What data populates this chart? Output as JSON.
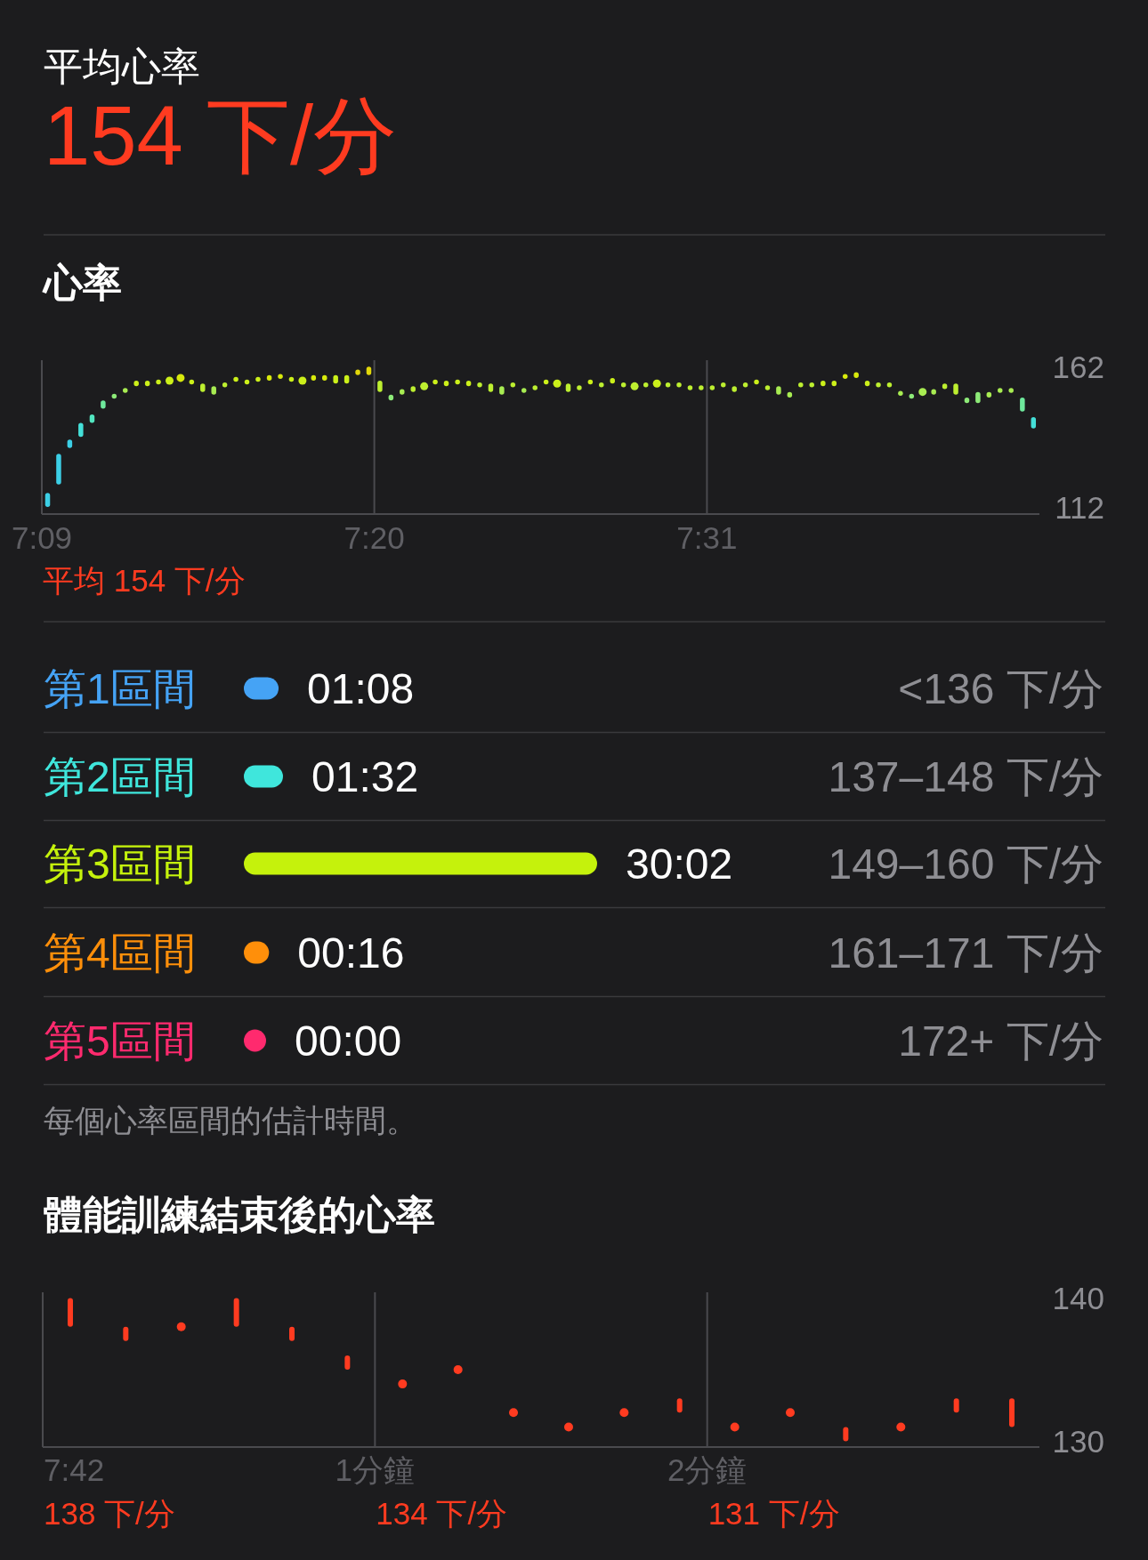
{
  "chart_data": [
    {
      "type": "other",
      "title": "平均心率",
      "subtitle": "154 下/分"
    },
    {
      "type": "bar",
      "title": "心率",
      "series": [
        {
          "type": "bar",
          "x": [
            7.1532,
            7.1593,
            7.1654,
            7.1715,
            7.1777,
            7.1838,
            7.1899,
            7.196,
            7.2021,
            7.2082,
            7.2143,
            7.2326,
            7.2387,
            7.2448,
            7.2509,
            7.257,
            7.2631,
            7.2692,
            7.2754,
            7.2815,
            7.2876,
            7.2998,
            7.3059,
            7.312,
            7.3181,
            7.3242,
            7.3303,
            7.3364,
            7.3425,
            7.3486,
            7.3547,
            7.3669,
            7.373,
            7.3792,
            7.3853,
            7.3914,
            7.3975,
            7.4036,
            7.4097,
            7.4158,
            7.4219,
            7.428,
            7.4402,
            7.4463,
            7.4524,
            7.4585,
            7.4646,
            7.4707,
            7.483,
            7.4952,
            7.5013,
            7.5074,
            7.5135,
            7.5196,
            7.5257,
            7.5318,
            7.5379,
            7.544,
            7.5501,
            7.5562,
            7.5623,
            7.5684,
            7.5745,
            7.5807,
            7.5868,
            7.5929,
            7.599,
            7.6051,
            7.6112,
            7.6173,
            7.6234,
            7.6295,
            7.6417,
            7.6478,
            7.6539,
            7.66,
            7.6661,
            7.6722,
            7.6783,
            7.6844,
            7.6906,
            7.6967
          ],
          "base": [
            112,
            120,
            133,
            137,
            142,
            147,
            151,
            153,
            155,
            155,
            156,
            156,
            153,
            152,
            155,
            157,
            156,
            157,
            157,
            158,
            157,
            157,
            157,
            156,
            156,
            159,
            159,
            153,
            150,
            152,
            153,
            156,
            155,
            156,
            155,
            155,
            153,
            152,
            155,
            153,
            154,
            156,
            153,
            154,
            156,
            155,
            156,
            155,
            155,
            155,
            155,
            154,
            154,
            154,
            155,
            153,
            155,
            156,
            154,
            152,
            151,
            155,
            155,
            155,
            155,
            158,
            158,
            155,
            155,
            155,
            152,
            151,
            152,
            154,
            152,
            149,
            149,
            151,
            153,
            153,
            146,
            140
          ],
          "values": [
            5,
            11,
            3,
            5,
            3,
            3,
            1,
            1,
            2,
            2,
            1,
            1,
            3,
            3,
            1,
            1,
            1,
            1,
            2,
            1,
            1,
            2,
            2,
            3,
            3,
            2,
            3,
            4,
            2,
            2,
            2,
            1,
            2,
            1,
            2,
            1,
            3,
            3,
            1,
            1,
            1,
            1,
            3,
            1,
            1,
            1,
            2,
            1,
            1,
            1,
            1,
            1,
            1,
            1,
            1,
            2,
            1,
            1,
            1,
            3,
            2,
            1,
            1,
            2,
            2,
            1,
            2,
            2,
            1,
            1,
            1,
            1,
            2,
            2,
            4,
            2,
            4,
            2,
            1,
            1,
            5,
            4
          ],
          "colors": [
            "#3ccfe6",
            "#3ccfe6",
            "#3ccfe6",
            "#44dfd8",
            "#52e6c0",
            "#6ee89c",
            "#8dea78",
            "#a8ec52",
            "#ccf01a",
            "#ccf01a",
            "#ccf01a",
            "#ccf01a",
            "#bdef30",
            "#a8ec52",
            "#bdef30",
            "#ccf01a",
            "#ccf01a",
            "#ccf01a",
            "#d8ea0c",
            "#d8ea0c",
            "#ccf01a",
            "#d8ea0c",
            "#d8ea0c",
            "#ccf01a",
            "#ccf01a",
            "#e2d70a",
            "#e2d70a",
            "#bdef30",
            "#8dea78",
            "#a8ec52",
            "#bdef30",
            "#ccf01a",
            "#ccf01a",
            "#ccf01a",
            "#ccf01a",
            "#bdef30",
            "#bdef30",
            "#a8ec52",
            "#bdef30",
            "#a8ec52",
            "#bdef30",
            "#ccf01a",
            "#bdef30",
            "#bdef30",
            "#ccf01a",
            "#bdef30",
            "#ccf01a",
            "#bdef30",
            "#bdef30",
            "#bdef30",
            "#bdef30",
            "#bdef30",
            "#bdef30",
            "#bdef30",
            "#bdef30",
            "#bdef30",
            "#bdef30",
            "#ccf01a",
            "#bdef30",
            "#a8ec52",
            "#a8ec52",
            "#bdef30",
            "#bdef30",
            "#ccf01a",
            "#ccf01a",
            "#d8ea0c",
            "#d8ea0c",
            "#ccf01a",
            "#bdef30",
            "#bdef30",
            "#a8ec52",
            "#8dea78",
            "#a8ec52",
            "#bdef30",
            "#bdef30",
            "#8dea78",
            "#8dea78",
            "#a8ec52",
            "#a8ec52",
            "#a8ec52",
            "#6ee89c",
            "#44dfd8"
          ]
        },
        {
          "type": "scatter",
          "marker": "circle",
          "x": [
            7.2204,
            7.2265,
            7.2937,
            7.3608,
            7.4341,
            7.4768,
            7.4891,
            7.6356
          ],
          "values": [
            157,
            158,
            157,
            155,
            156,
            155,
            156,
            153
          ],
          "colors": [
            "#ccf01a",
            "#d8ea0c",
            "#ccf01a",
            "#bdef30",
            "#ccf01a",
            "#bdef30",
            "#ccf01a",
            "#a8ec52"
          ]
        }
      ],
      "xlim": [
        7.15,
        7.7
      ],
      "xticks": [
        {
          "value": 7.15,
          "label": "7:09"
        },
        {
          "value": 7.3333,
          "label": "7:20"
        },
        {
          "value": 7.5167,
          "label": "7:31"
        }
      ],
      "ylim": [
        109.5,
        164.3
      ],
      "yticks": [
        112,
        162
      ],
      "grid": "x",
      "annotations": [
        "平均 154 下/分"
      ]
    },
    {
      "type": "bar",
      "orientation": "horizontal",
      "categories": [
        "第1區間",
        "第2區間",
        "第3區間",
        "第4區間",
        "第5區間"
      ],
      "values": [
        68,
        92,
        1802,
        16,
        0
      ],
      "colors": [
        "#45a3f5",
        "#3fe6dc",
        "#c5f20c",
        "#ff8f0a",
        "#ff2a6e"
      ],
      "value_labels": [
        "01:08",
        "01:32",
        "30:02",
        "00:16",
        "00:00"
      ],
      "annotations": [
        "<136 下/分",
        "137–148 下/分",
        "149–160 下/分",
        "161–171 下/分",
        "172+ 下/分",
        "每個心率區間的估計時間。"
      ]
    },
    {
      "type": "bar",
      "title": "體能訓練結束後的心率",
      "xlabel": "7:42",
      "series": [
        {
          "type": "bar",
          "color": "#ff3b20",
          "x": [
            0.083,
            0.25,
            0.583,
            0.75,
            0.917,
            1.917,
            2.417,
            2.75,
            2.917
          ],
          "base": [
            138,
            137,
            138,
            137,
            135,
            132,
            130,
            132,
            131
          ],
          "values": [
            2,
            1,
            2,
            1,
            1,
            1,
            1,
            1,
            2
          ]
        },
        {
          "type": "scatter",
          "marker": "circle",
          "color": "#ff3b20",
          "x": [
            0.417,
            1.083,
            1.25,
            1.417,
            1.583,
            1.75,
            2.083,
            2.25,
            2.583
          ],
          "values": [
            138,
            134,
            135,
            132,
            131,
            132,
            131,
            132,
            131
          ]
        }
      ],
      "xlim": [
        0,
        3
      ],
      "xticks": [
        {
          "value": 1,
          "label": "1分鐘"
        },
        {
          "value": 2,
          "label": "2分鐘"
        }
      ],
      "ylim": [
        129.6,
        140.4
      ],
      "yticks": [
        130,
        140
      ],
      "grid": "x",
      "annotations": [
        "138 下/分",
        "134 下/分",
        "131 下/分"
      ]
    }
  ]
}
